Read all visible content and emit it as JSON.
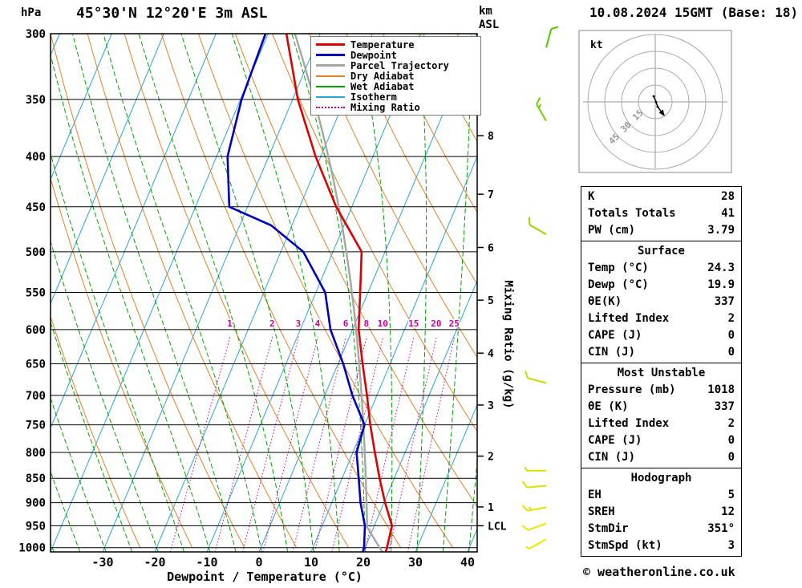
{
  "header": {
    "pressure_unit": "hPa",
    "title": "45°30'N 12°20'E 3m ASL",
    "km": "km",
    "asl": "ASL",
    "datetime": "10.08.2024 15GMT (Base: 18)"
  },
  "chart_data": {
    "type": "line",
    "variant": "skew-t log-p thermodynamic sounding",
    "title": "45°30'N 12°20'E 3m ASL",
    "xlabel": "Dewpoint / Temperature (°C)",
    "ylabel": "hPa",
    "y2label": "Mixing Ratio (g/kg)",
    "pressure_range": [
      300,
      1010
    ],
    "temp_ticks": [
      -30,
      -20,
      -10,
      0,
      10,
      20,
      30,
      40
    ],
    "pressure_ticks": [
      300,
      350,
      400,
      450,
      500,
      550,
      600,
      650,
      700,
      750,
      800,
      850,
      900,
      950,
      1000
    ],
    "km_levels": [
      [
        1,
        909
      ],
      [
        2,
        807
      ],
      [
        3,
        716
      ],
      [
        4,
        634
      ],
      [
        5,
        560
      ],
      [
        6,
        495
      ],
      [
        7,
        437
      ],
      [
        8,
        381
      ]
    ],
    "lcl": {
      "label": "LCL",
      "pressure": 950
    },
    "mixing_ratio_values": [
      1,
      2,
      3,
      4,
      6,
      8,
      10,
      15,
      20,
      25
    ],
    "series": [
      {
        "name": "Temperature",
        "color": "#dd0000",
        "points": [
          [
            1010,
            24.3
          ],
          [
            1000,
            24.2
          ],
          [
            950,
            23.4
          ],
          [
            900,
            20.2
          ],
          [
            850,
            17.2
          ],
          [
            800,
            14.2
          ],
          [
            750,
            11.1
          ],
          [
            700,
            8.1
          ],
          [
            650,
            4.7
          ],
          [
            600,
            1.2
          ],
          [
            550,
            -1.5
          ],
          [
            500,
            -4.5
          ],
          [
            450,
            -13.0
          ],
          [
            400,
            -21.0
          ],
          [
            350,
            -29.0
          ],
          [
            300,
            -36.5
          ]
        ]
      },
      {
        "name": "Dewpoint",
        "color": "#0000bb",
        "points": [
          [
            1010,
            19.9
          ],
          [
            1000,
            19.8
          ],
          [
            950,
            18.2
          ],
          [
            900,
            15.5
          ],
          [
            850,
            13.2
          ],
          [
            800,
            10.7
          ],
          [
            750,
            10.0
          ],
          [
            700,
            5.3
          ],
          [
            650,
            1.0
          ],
          [
            600,
            -4.2
          ],
          [
            550,
            -8.2
          ],
          [
            500,
            -15.7
          ],
          [
            470,
            -24.0
          ],
          [
            450,
            -33.5
          ],
          [
            400,
            -37.9
          ],
          [
            350,
            -39.8
          ],
          [
            300,
            -40.5
          ]
        ]
      }
    ],
    "parcel": {
      "name": "Parcel Trajectory",
      "pressure": 1018,
      "temp": 24.3,
      "dewp": 19.9
    },
    "legend": [
      {
        "label": "Temperature",
        "color": "#dd0000",
        "style": "solid",
        "weight": 3
      },
      {
        "label": "Dewpoint",
        "color": "#0000bb",
        "style": "solid",
        "weight": 3
      },
      {
        "label": "Parcel Trajectory",
        "color": "#a6a6a6",
        "style": "solid",
        "weight": 3
      },
      {
        "label": "Dry Adiabat",
        "color": "#e08228",
        "style": "solid",
        "weight": 2
      },
      {
        "label": "Wet Adiabat",
        "color": "#00a400",
        "style": "solid",
        "weight": 2
      },
      {
        "label": "Isotherm",
        "color": "#2aa5d5",
        "style": "solid",
        "weight": 2
      },
      {
        "label": "Mixing Ratio",
        "color": "#cc0099",
        "style": "dotted",
        "weight": 2
      }
    ],
    "colors": {
      "temperature": "#dd0000",
      "dewpoint": "#0000bb",
      "parcel": "#a6a6a6",
      "dry_adiabat": "#e08228",
      "wet_adiabat": "#00a400",
      "isotherm": "#2aa5d5",
      "mixing_ratio": "#cc0099",
      "pressure_line": "#000000"
    },
    "wind_barbs": [
      {
        "pressure": 310,
        "dir": 15,
        "speed": 10,
        "color": "#55c400"
      },
      {
        "pressure": 368,
        "dir": 330,
        "speed": 15,
        "color": "#79cc00"
      },
      {
        "pressure": 480,
        "dir": 300,
        "speed": 10,
        "color": "#9cd400"
      },
      {
        "pressure": 680,
        "dir": 285,
        "speed": 10,
        "color": "#c0dc00"
      },
      {
        "pressure": 835,
        "dir": 270,
        "speed": 5,
        "color": "#d4e000"
      },
      {
        "pressure": 865,
        "dir": 265,
        "speed": 10,
        "color": "#dce200"
      },
      {
        "pressure": 910,
        "dir": 260,
        "speed": 15,
        "color": "#e4e400"
      },
      {
        "pressure": 945,
        "dir": 250,
        "speed": 10,
        "color": "#ece600"
      },
      {
        "pressure": 980,
        "dir": 240,
        "speed": 5,
        "color": "#f0e800"
      }
    ],
    "hodograph": {
      "unit_label": "kt",
      "rings": [
        15,
        30,
        45,
        60
      ],
      "ring_labels": [
        15,
        30,
        45
      ],
      "trace_kt": [
        [
          -1.4,
          5
        ],
        [
          0.7,
          0
        ],
        [
          2.1,
          -4.3
        ],
        [
          6.4,
          -10
        ]
      ]
    }
  },
  "table": {
    "sections": [
      {
        "header": null,
        "rows": [
          [
            "K",
            "28"
          ],
          [
            "Totals Totals",
            "41"
          ],
          [
            "PW (cm)",
            "3.79"
          ]
        ]
      },
      {
        "header": "Surface",
        "rows": [
          [
            "Temp (°C)",
            "24.3"
          ],
          [
            "Dewp (°C)",
            "19.9"
          ],
          [
            "θE(K)",
            "337"
          ],
          [
            "Lifted Index",
            "2"
          ],
          [
            "CAPE (J)",
            "0"
          ],
          [
            "CIN (J)",
            "0"
          ]
        ]
      },
      {
        "header": "Most Unstable",
        "rows": [
          [
            "Pressure (mb)",
            "1018"
          ],
          [
            "θE (K)",
            "337"
          ],
          [
            "Lifted Index",
            "2"
          ],
          [
            "CAPE (J)",
            "0"
          ],
          [
            "CIN (J)",
            "0"
          ]
        ]
      },
      {
        "header": "Hodograph",
        "rows": [
          [
            "EH",
            "5"
          ],
          [
            "SREH",
            "12"
          ],
          [
            "StmDir",
            "351°"
          ],
          [
            "StmSpd (kt)",
            "3"
          ]
        ]
      }
    ]
  },
  "footer": {
    "copyright": "© weatheronline.co.uk"
  }
}
